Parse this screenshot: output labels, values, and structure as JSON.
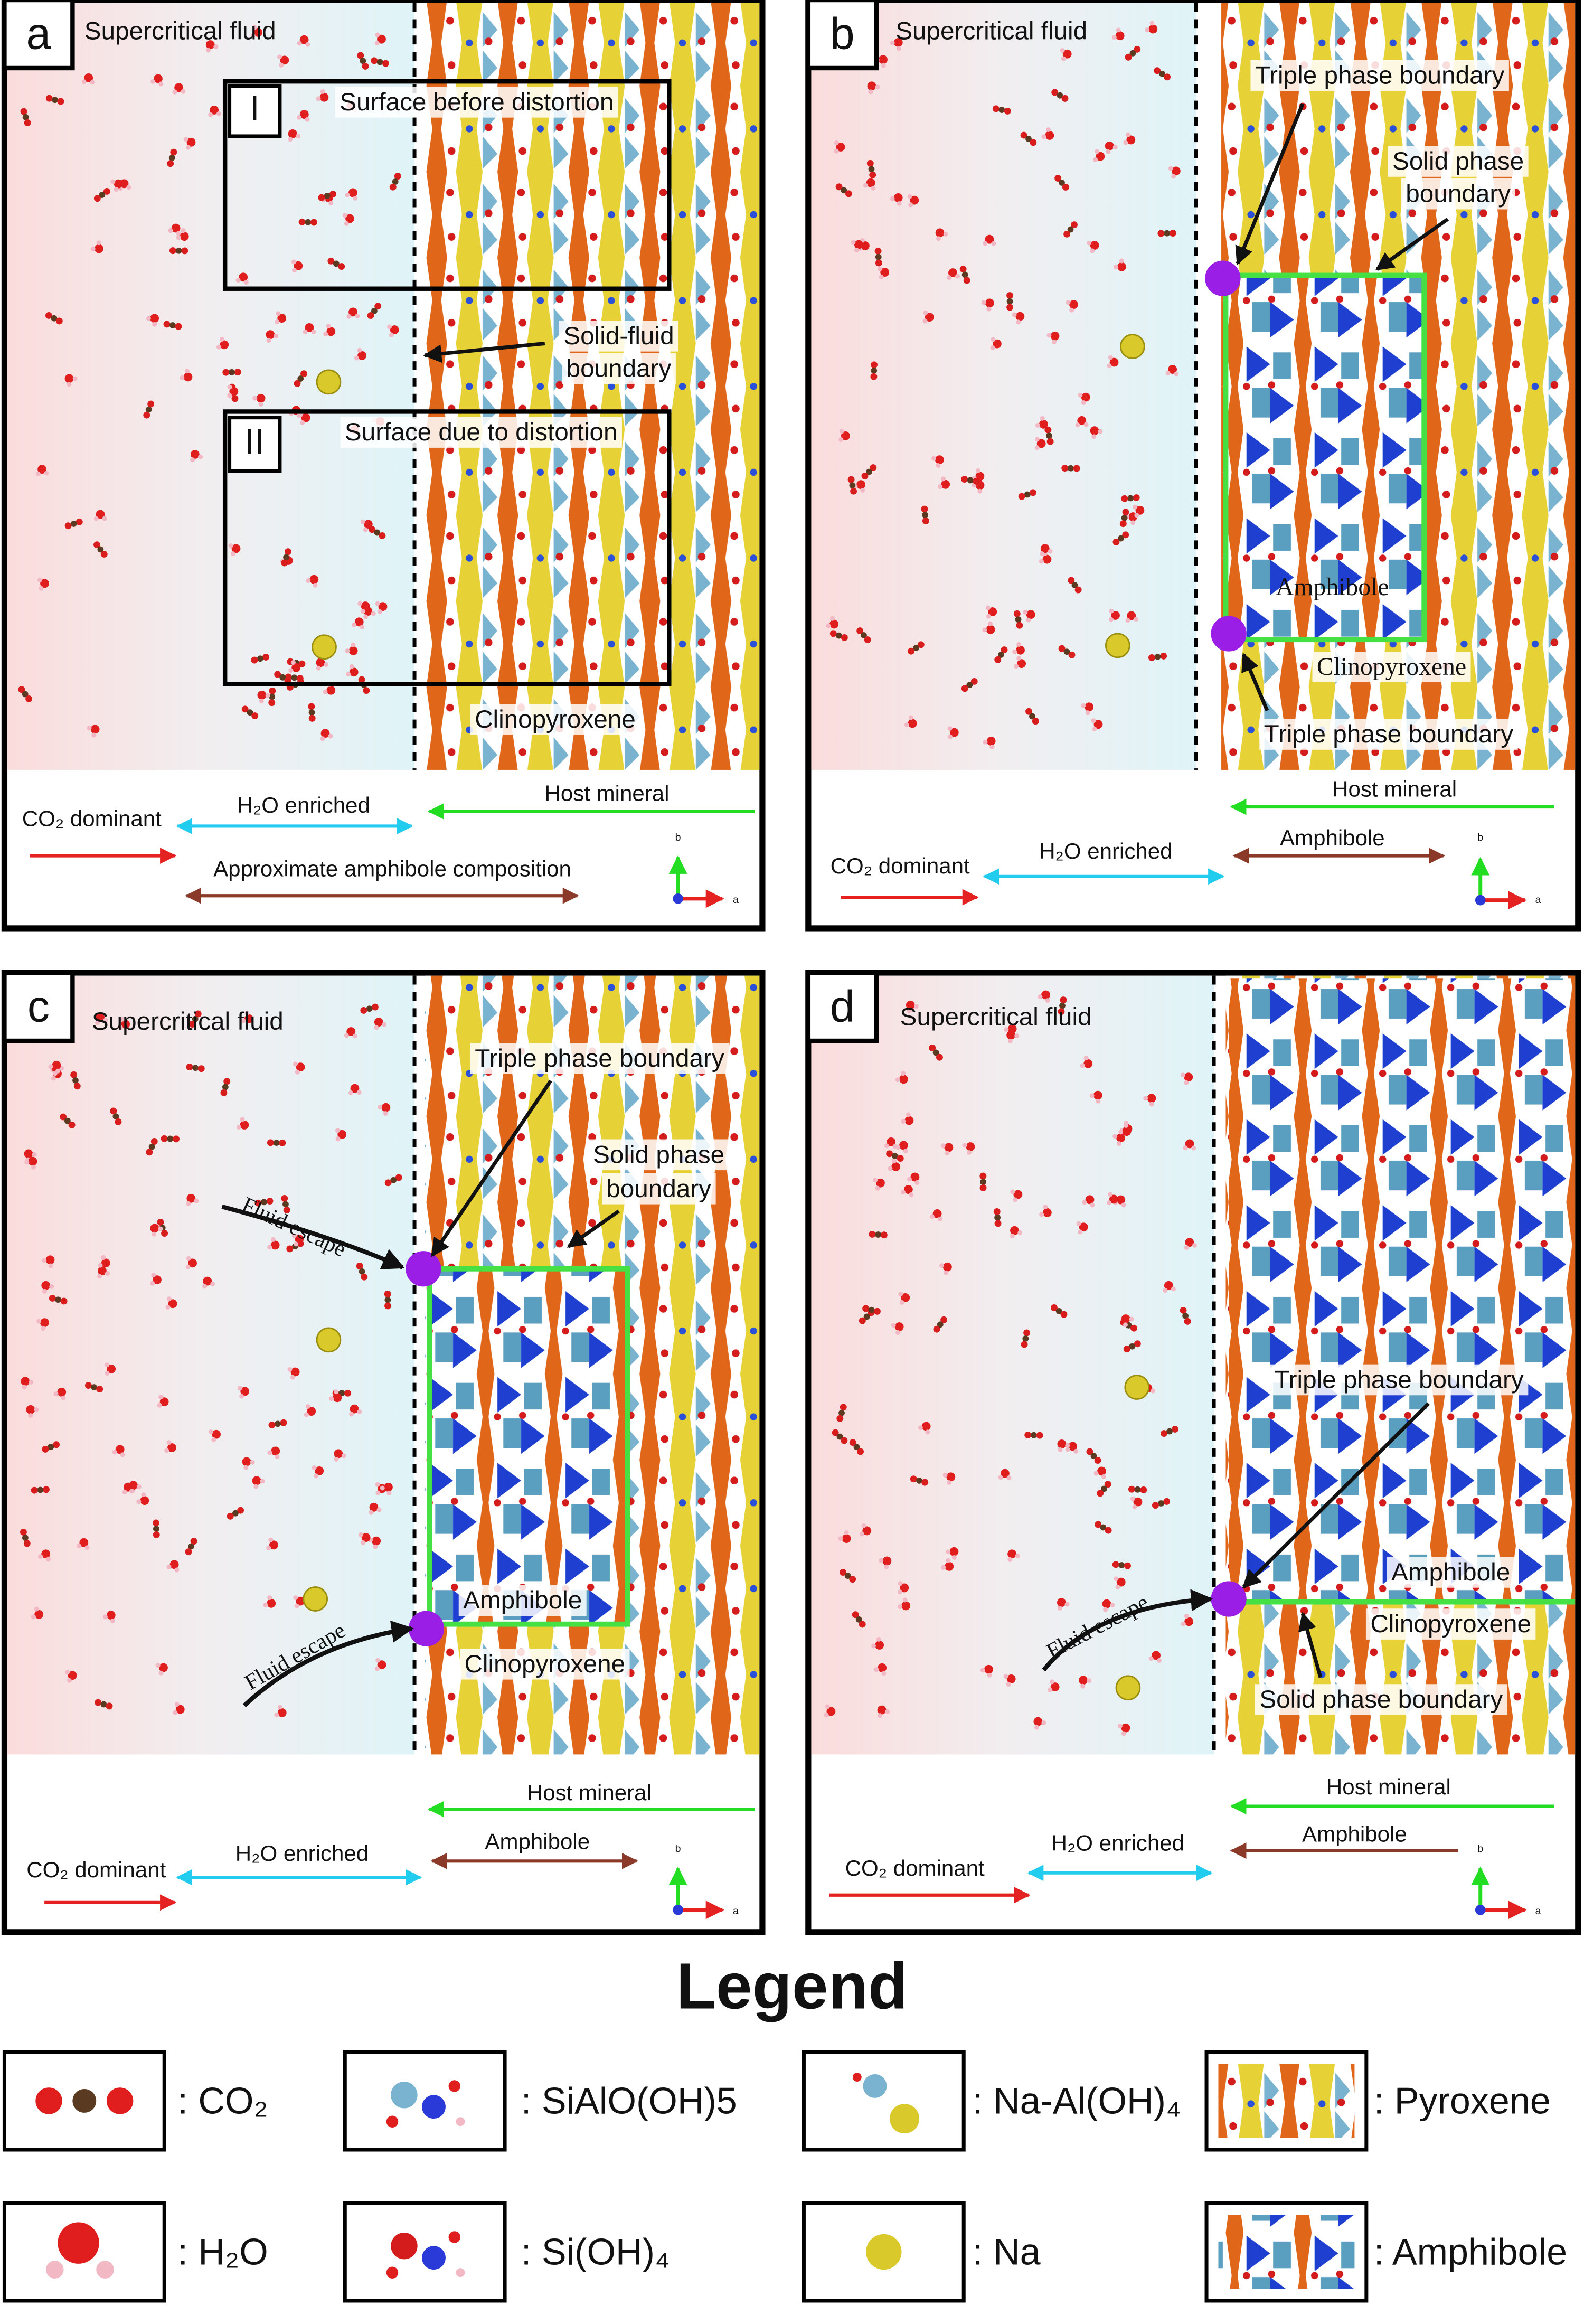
{
  "panels": [
    {
      "label": "a",
      "fluid": "Supercritical fluid",
      "insets": [
        "I",
        "II"
      ],
      "notes": [
        "Surface before distortion",
        "Surface due to distortion",
        "Clinopyroxene"
      ],
      "boundary": [
        "Solid-fluid",
        "boundary"
      ],
      "scale": {
        "co2": "CO₂ dominant",
        "h2o": "H₂O enriched",
        "host": "Host mineral",
        "amphibole": "Approximate amphibole composition"
      },
      "axes": [
        "b",
        "a"
      ]
    },
    {
      "label": "b",
      "fluid": "Supercritical fluid",
      "notes": [
        "Triple phase boundary",
        "Amphibole",
        "Clinopyroxene",
        "Triple phase boundary"
      ],
      "boundary": [
        "Solid phase",
        "boundary"
      ],
      "scale": {
        "co2": "CO₂ dominant",
        "h2o": "H₂O enriched",
        "host": "Host mineral",
        "amphibole": "Amphibole"
      },
      "axes": [
        "b",
        "a"
      ]
    },
    {
      "label": "c",
      "fluid": "Supercritical fluid",
      "notes": [
        "Triple phase boundary",
        "Amphibole",
        "Clinopyroxene",
        "Fluid escape",
        "Fluid escape"
      ],
      "boundary": [
        "Solid phase",
        "boundary"
      ],
      "scale": {
        "co2": "CO₂ dominant",
        "h2o": "H₂O enriched",
        "host": "Host mineral",
        "amphibole": "Amphibole"
      },
      "axes": [
        "b",
        "a"
      ]
    },
    {
      "label": "d",
      "fluid": "Supercritical fluid",
      "notes": [
        "Triple phase boundary",
        "Amphibole",
        "Clinopyroxene",
        "Solid phase boundary",
        "Fluid escape"
      ],
      "scale": {
        "co2": "CO₂ dominant",
        "h2o": "H₂O enriched",
        "host": "Host mineral",
        "amphibole": "Amphibole"
      },
      "axes": [
        "b",
        "a"
      ]
    }
  ],
  "legend": {
    "title": "Legend",
    "items": [
      ": CO₂",
      ": SiAlO(OH)5",
      ": Na-Al(OH)₄",
      ": Pyroxene",
      ": H₂O",
      ": Si(OH)₄",
      ": Na",
      ": Amphibole"
    ]
  }
}
